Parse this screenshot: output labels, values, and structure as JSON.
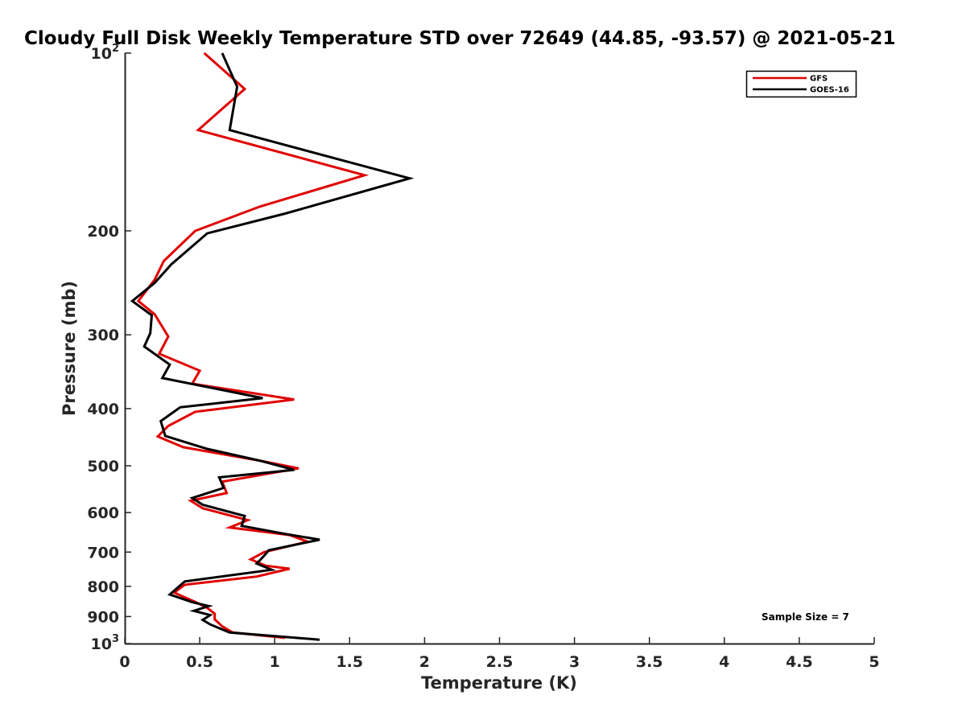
{
  "chart_data": {
    "type": "line",
    "title": "Cloudy Full Disk Weekly Temperature STD over 72649 (44.85, -93.57) @ 2021-05-21",
    "xlabel": "Temperature (K)",
    "ylabel": "Pressure (mb)",
    "xlim": [
      0,
      5
    ],
    "ylim": [
      100,
      1000
    ],
    "y_scale": "log",
    "y_reversed": true,
    "x_ticks": [
      "0",
      "0.5",
      "1",
      "1.5",
      "2",
      "2.5",
      "3",
      "3.5",
      "4",
      "4.5",
      "5"
    ],
    "y_ticks": [
      {
        "value": 100,
        "base": "10",
        "exp": "2"
      },
      {
        "value": 200,
        "label": "200"
      },
      {
        "value": 300,
        "label": "300"
      },
      {
        "value": 400,
        "label": "400"
      },
      {
        "value": 500,
        "label": "500"
      },
      {
        "value": 600,
        "label": "600"
      },
      {
        "value": 700,
        "label": "700"
      },
      {
        "value": 800,
        "label": "800"
      },
      {
        "value": 900,
        "label": "900"
      },
      {
        "value": 1000,
        "base": "10",
        "exp": "3"
      }
    ],
    "grid": false,
    "legend_position": "top-right",
    "annotation": "Sample Size = 7",
    "series": [
      {
        "name": "GFS",
        "color": "#e00000",
        "points": [
          [
            0.53,
            100
          ],
          [
            0.8,
            115
          ],
          [
            0.49,
            135
          ],
          [
            1.6,
            161
          ],
          [
            0.9,
            182
          ],
          [
            0.47,
            200
          ],
          [
            0.26,
            225
          ],
          [
            0.2,
            242
          ],
          [
            0.09,
            263
          ],
          [
            0.2,
            277
          ],
          [
            0.29,
            302
          ],
          [
            0.23,
            323
          ],
          [
            0.5,
            345
          ],
          [
            0.45,
            363
          ],
          [
            1.13,
            386
          ],
          [
            0.47,
            405
          ],
          [
            0.29,
            428
          ],
          [
            0.22,
            446
          ],
          [
            0.39,
            465
          ],
          [
            0.9,
            490
          ],
          [
            1.16,
            505
          ],
          [
            0.65,
            532
          ],
          [
            0.68,
            556
          ],
          [
            0.44,
            573
          ],
          [
            0.52,
            590
          ],
          [
            0.82,
            618
          ],
          [
            0.7,
            636
          ],
          [
            1.1,
            655
          ],
          [
            1.22,
            672
          ],
          [
            0.93,
            700
          ],
          [
            0.84,
            720
          ],
          [
            0.94,
            738
          ],
          [
            1.1,
            747
          ],
          [
            0.88,
            770
          ],
          [
            0.4,
            795
          ],
          [
            0.33,
            820
          ],
          [
            0.47,
            850
          ],
          [
            0.55,
            870
          ],
          [
            0.6,
            890
          ],
          [
            0.6,
            910
          ],
          [
            0.65,
            935
          ],
          [
            0.72,
            958
          ],
          [
            1.07,
            978
          ]
        ]
      },
      {
        "name": "GOES-16",
        "color": "#000000",
        "points": [
          [
            0.65,
            100
          ],
          [
            0.75,
            114
          ],
          [
            0.7,
            135
          ],
          [
            1.9,
            163
          ],
          [
            1.07,
            187
          ],
          [
            0.55,
            202
          ],
          [
            0.31,
            228
          ],
          [
            0.2,
            245
          ],
          [
            0.05,
            263
          ],
          [
            0.18,
            278
          ],
          [
            0.17,
            298
          ],
          [
            0.13,
            314
          ],
          [
            0.3,
            337
          ],
          [
            0.25,
            355
          ],
          [
            0.92,
            384
          ],
          [
            0.37,
            398
          ],
          [
            0.24,
            420
          ],
          [
            0.27,
            445
          ],
          [
            0.55,
            468
          ],
          [
            0.9,
            490
          ],
          [
            1.13,
            508
          ],
          [
            0.63,
            523
          ],
          [
            0.66,
            545
          ],
          [
            0.45,
            567
          ],
          [
            0.52,
            582
          ],
          [
            0.8,
            608
          ],
          [
            0.78,
            632
          ],
          [
            1.07,
            652
          ],
          [
            1.3,
            667
          ],
          [
            0.96,
            695
          ],
          [
            0.93,
            710
          ],
          [
            0.88,
            732
          ],
          [
            0.98,
            750
          ],
          [
            0.4,
            785
          ],
          [
            0.3,
            826
          ],
          [
            0.45,
            851
          ],
          [
            0.56,
            864
          ],
          [
            0.46,
            880
          ],
          [
            0.57,
            895
          ],
          [
            0.52,
            912
          ],
          [
            0.57,
            928
          ],
          [
            0.7,
            958
          ],
          [
            1.3,
            985
          ]
        ]
      }
    ]
  }
}
